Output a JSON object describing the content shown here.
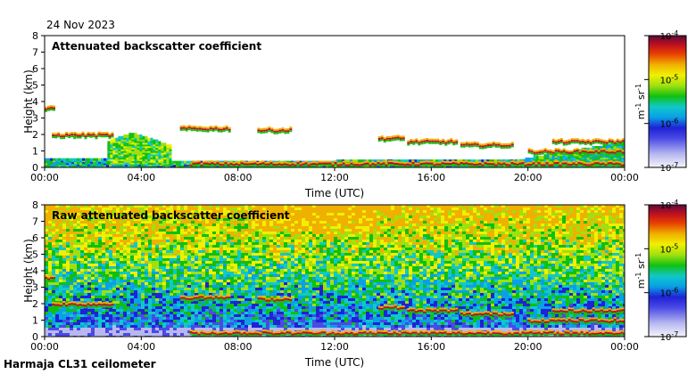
{
  "header": {
    "date": "24 Nov 2023"
  },
  "footer": {
    "instrument": "Harmaja CL31 ceilometer"
  },
  "colors": {
    "scale": [
      "#f4f4fb",
      "#b8b8f0",
      "#4a4ae6",
      "#1f22d6",
      "#0aa0e6",
      "#10c8c8",
      "#10c010",
      "#a0e010",
      "#f0f000",
      "#f0b000",
      "#e84000",
      "#c01020",
      "#5a0a3a"
    ]
  },
  "chart_data": [
    {
      "type": "heatmap",
      "title": "Attenuated backscatter coefficient",
      "xlabel": "Time (UTC)",
      "ylabel": "Height (km)",
      "xticks": [
        "00:00",
        "04:00",
        "08:00",
        "12:00",
        "16:00",
        "20:00",
        "00:00"
      ],
      "yticks": [
        "0",
        "1",
        "2",
        "3",
        "4",
        "5",
        "6",
        "7",
        "8"
      ],
      "ylim": [
        0,
        8
      ],
      "xlim_hours": [
        0,
        24
      ],
      "colorbar": {
        "ticks": [
          "10-7",
          "10-6",
          "10-5",
          "10-4"
        ],
        "label": "m-1 sr-1"
      },
      "cloud_layers": [
        {
          "t0": 0.0,
          "t1": 0.4,
          "h": 3.6
        },
        {
          "t0": 0.3,
          "t1": 1.2,
          "h": 2.0
        },
        {
          "t0": 1.2,
          "t1": 2.8,
          "h": 2.0
        },
        {
          "t0": 5.6,
          "t1": 7.6,
          "h": 2.4
        },
        {
          "t0": 8.8,
          "t1": 10.2,
          "h": 2.3
        },
        {
          "t0": 13.8,
          "t1": 14.8,
          "h": 1.8
        },
        {
          "t0": 15.0,
          "t1": 17.0,
          "h": 1.6
        },
        {
          "t0": 17.2,
          "t1": 19.4,
          "h": 1.4
        },
        {
          "t0": 20.0,
          "t1": 24.0,
          "h": 1.0
        },
        {
          "t0": 21.0,
          "t1": 24.0,
          "h": 1.6
        },
        {
          "t0": 6.0,
          "t1": 24.0,
          "h": 0.25
        }
      ]
    },
    {
      "type": "heatmap",
      "title": "Raw attenuated backscatter coefficient",
      "xlabel": "Time (UTC)",
      "ylabel": "Height (km)",
      "xticks": [
        "00:00",
        "04:00",
        "08:00",
        "12:00",
        "16:00",
        "20:00",
        "00:00"
      ],
      "yticks": [
        "0",
        "1",
        "2",
        "3",
        "4",
        "5",
        "6",
        "7",
        "8"
      ],
      "ylim": [
        0,
        8
      ],
      "xlim_hours": [
        0,
        24
      ],
      "colorbar": {
        "ticks": [
          "10-7",
          "10-6",
          "10-5",
          "10-4"
        ],
        "label": "m-1 sr-1"
      }
    }
  ]
}
